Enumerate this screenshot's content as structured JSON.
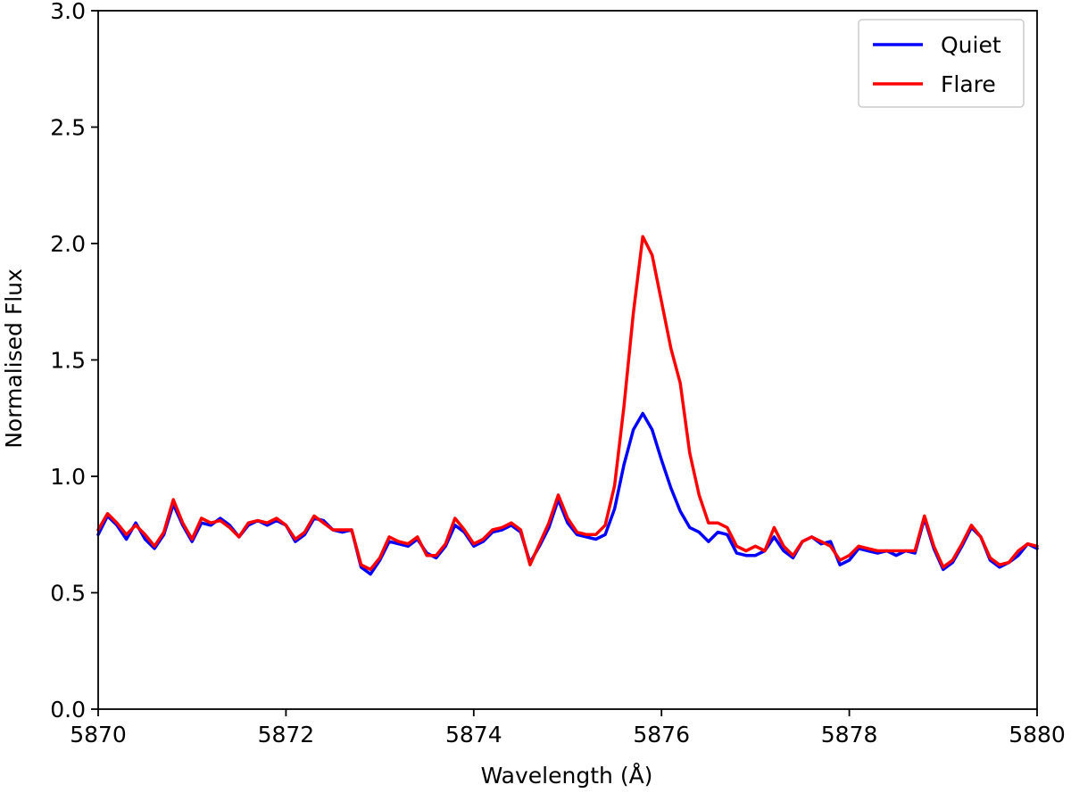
{
  "chart_data": {
    "type": "line",
    "title": "",
    "xlabel": "Wavelength (Å)",
    "ylabel": "Normalised Flux",
    "xlim": [
      5870,
      5880
    ],
    "ylim": [
      0,
      3.0
    ],
    "xticks": [
      5870,
      5872,
      5874,
      5876,
      5878,
      5880
    ],
    "yticks": [
      0.0,
      0.5,
      1.0,
      1.5,
      2.0,
      2.5,
      3.0
    ],
    "xtick_labels": [
      "5870",
      "5872",
      "5874",
      "5876",
      "5878",
      "5880"
    ],
    "ytick_labels": [
      "0.0",
      "0.5",
      "1.0",
      "1.5",
      "2.0",
      "2.5",
      "3.0"
    ],
    "grid": false,
    "legend_position": "top-right",
    "x": [
      5870.0,
      5870.1,
      5870.2,
      5870.3,
      5870.4,
      5870.5,
      5870.6,
      5870.7,
      5870.8,
      5870.9,
      5871.0,
      5871.1,
      5871.2,
      5871.3,
      5871.4,
      5871.5,
      5871.6,
      5871.7,
      5871.8,
      5871.9,
      5872.0,
      5872.1,
      5872.2,
      5872.3,
      5872.4,
      5872.5,
      5872.6,
      5872.7,
      5872.8,
      5872.9,
      5873.0,
      5873.1,
      5873.2,
      5873.3,
      5873.4,
      5873.5,
      5873.6,
      5873.7,
      5873.8,
      5873.9,
      5874.0,
      5874.1,
      5874.2,
      5874.3,
      5874.4,
      5874.5,
      5874.6,
      5874.7,
      5874.8,
      5874.9,
      5875.0,
      5875.1,
      5875.2,
      5875.3,
      5875.4,
      5875.5,
      5875.6,
      5875.7,
      5875.8,
      5875.9,
      5876.0,
      5876.1,
      5876.2,
      5876.3,
      5876.4,
      5876.5,
      5876.6,
      5876.7,
      5876.8,
      5876.9,
      5877.0,
      5877.1,
      5877.2,
      5877.3,
      5877.4,
      5877.5,
      5877.6,
      5877.7,
      5877.8,
      5877.9,
      5878.0,
      5878.1,
      5878.2,
      5878.3,
      5878.4,
      5878.5,
      5878.6,
      5878.7,
      5878.8,
      5878.9,
      5879.0,
      5879.1,
      5879.2,
      5879.3,
      5879.4,
      5879.5,
      5879.6,
      5879.7,
      5879.8,
      5879.9,
      5880.0
    ],
    "series": [
      {
        "name": "Quiet",
        "color": "#0000ff",
        "values": [
          0.75,
          0.83,
          0.79,
          0.73,
          0.8,
          0.73,
          0.69,
          0.75,
          0.88,
          0.79,
          0.72,
          0.8,
          0.79,
          0.82,
          0.79,
          0.74,
          0.79,
          0.81,
          0.79,
          0.81,
          0.79,
          0.72,
          0.75,
          0.82,
          0.81,
          0.77,
          0.76,
          0.77,
          0.61,
          0.58,
          0.64,
          0.72,
          0.71,
          0.7,
          0.73,
          0.67,
          0.65,
          0.7,
          0.79,
          0.76,
          0.7,
          0.72,
          0.76,
          0.77,
          0.79,
          0.76,
          0.63,
          0.7,
          0.78,
          0.9,
          0.8,
          0.75,
          0.74,
          0.73,
          0.75,
          0.86,
          1.05,
          1.2,
          1.27,
          1.2,
          1.07,
          0.95,
          0.85,
          0.78,
          0.76,
          0.72,
          0.76,
          0.75,
          0.67,
          0.66,
          0.66,
          0.68,
          0.74,
          0.68,
          0.65,
          0.72,
          0.74,
          0.71,
          0.72,
          0.62,
          0.64,
          0.69,
          0.68,
          0.67,
          0.68,
          0.66,
          0.68,
          0.67,
          0.82,
          0.69,
          0.6,
          0.63,
          0.7,
          0.78,
          0.74,
          0.64,
          0.61,
          0.63,
          0.66,
          0.71,
          0.69
        ]
      },
      {
        "name": "Flare",
        "color": "#ff0000",
        "values": [
          0.77,
          0.84,
          0.8,
          0.75,
          0.79,
          0.75,
          0.7,
          0.76,
          0.9,
          0.8,
          0.73,
          0.82,
          0.8,
          0.81,
          0.78,
          0.74,
          0.8,
          0.81,
          0.8,
          0.82,
          0.79,
          0.73,
          0.76,
          0.83,
          0.8,
          0.77,
          0.77,
          0.77,
          0.62,
          0.6,
          0.65,
          0.74,
          0.72,
          0.71,
          0.74,
          0.66,
          0.66,
          0.71,
          0.82,
          0.77,
          0.71,
          0.73,
          0.77,
          0.78,
          0.8,
          0.77,
          0.62,
          0.71,
          0.8,
          0.92,
          0.82,
          0.76,
          0.75,
          0.75,
          0.79,
          0.96,
          1.3,
          1.7,
          2.03,
          1.95,
          1.75,
          1.55,
          1.4,
          1.1,
          0.92,
          0.8,
          0.8,
          0.78,
          0.7,
          0.68,
          0.7,
          0.68,
          0.78,
          0.7,
          0.66,
          0.72,
          0.74,
          0.72,
          0.7,
          0.64,
          0.66,
          0.7,
          0.69,
          0.68,
          0.68,
          0.68,
          0.68,
          0.68,
          0.83,
          0.7,
          0.61,
          0.64,
          0.71,
          0.79,
          0.74,
          0.65,
          0.62,
          0.63,
          0.68,
          0.71,
          0.7
        ]
      }
    ]
  }
}
